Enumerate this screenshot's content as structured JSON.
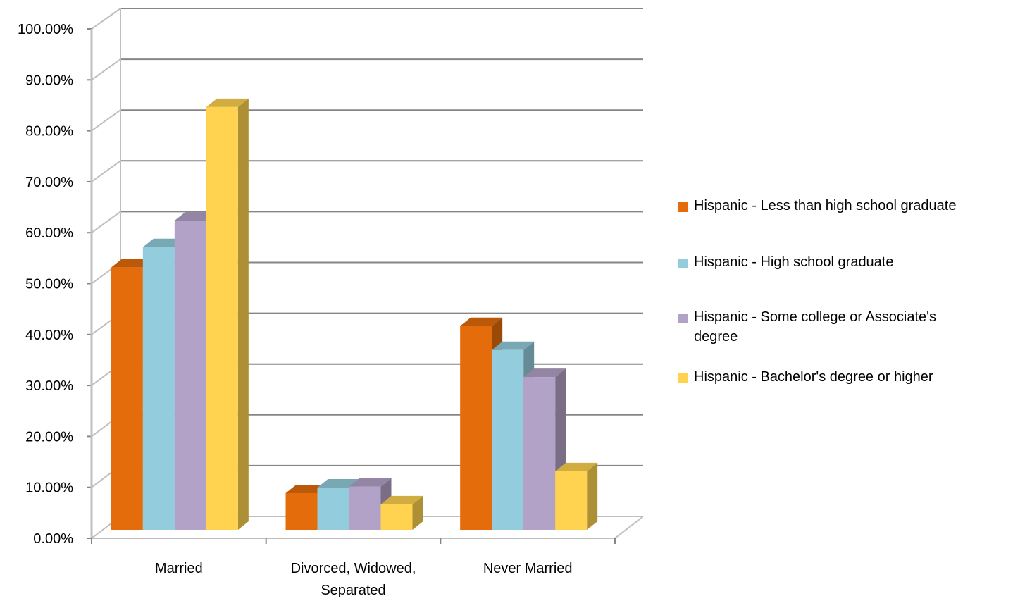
{
  "chart_data": {
    "type": "bar",
    "title": "",
    "xlabel": "",
    "ylabel": "",
    "ylim": [
      0,
      1
    ],
    "y_tick_labels": [
      "0.00%",
      "10.00%",
      "20.00%",
      "30.00%",
      "40.00%",
      "50.00%",
      "60.00%",
      "70.00%",
      "80.00%",
      "90.00%",
      "100.00%"
    ],
    "categories": [
      [
        "Married"
      ],
      [
        "Divorced, Widowed,",
        "Separated"
      ],
      [
        "Never Married"
      ]
    ],
    "series": [
      {
        "name": "Hispanic - Less than high school graduate",
        "color": "#E46C0A",
        "values": [
          0.515,
          0.072,
          0.4
        ]
      },
      {
        "name": "Hispanic - High school graduate",
        "color": "#93CDDD",
        "values": [
          0.555,
          0.083,
          0.353
        ]
      },
      {
        "name": "Hispanic - Some college or Associate's degree",
        "color": "#B3A2C7",
        "values": [
          0.607,
          0.085,
          0.3
        ]
      },
      {
        "name": "Hispanic - Bachelor's degree or higher",
        "color": "#FFD34F",
        "values": [
          0.83,
          0.05,
          0.115
        ]
      }
    ],
    "grid": true,
    "legend_position": "right",
    "style": "3d-clustered-column"
  },
  "legend": {
    "lines": [
      [
        "Hispanic - Less than high school graduate"
      ],
      [
        "Hispanic - High school graduate"
      ],
      [
        "Hispanic - Some college or Associate's",
        "degree"
      ],
      [
        "Hispanic - Bachelor's degree or higher"
      ]
    ]
  }
}
